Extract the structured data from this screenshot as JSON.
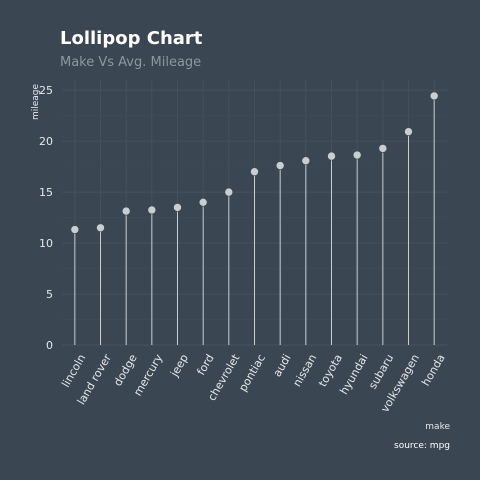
{
  "chart_data": {
    "type": "lollipop",
    "title": "Lollipop Chart",
    "subtitle": "Make Vs Avg. Mileage",
    "xlabel": "make",
    "ylabel": "mileage",
    "caption": "source: mpg",
    "categories": [
      "lincoln",
      "land rover",
      "dodge",
      "mercury",
      "jeep",
      "ford",
      "chevrolet",
      "pontiac",
      "audi",
      "nissan",
      "toyota",
      "hyundai",
      "subaru",
      "volkswagen",
      "honda"
    ],
    "values": [
      11.33,
      11.5,
      13.14,
      13.25,
      13.5,
      14.0,
      15.0,
      17.0,
      17.61,
      18.08,
      18.53,
      18.64,
      19.29,
      20.93,
      24.44
    ],
    "ylim": [
      0,
      26
    ],
    "yticks": [
      0,
      5,
      10,
      15,
      20,
      25
    ],
    "grid": true,
    "colors": {
      "background": "#3a4651",
      "marker": "#c9ced3"
    }
  }
}
